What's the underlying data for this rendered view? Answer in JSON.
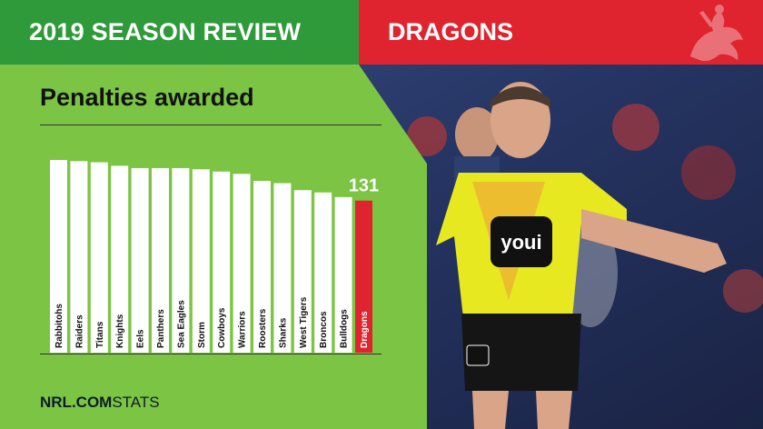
{
  "header": {
    "left_title": "2019 SEASON REVIEW",
    "right_title": "DRAGONS"
  },
  "footer": {
    "brand": "NRL.COM",
    "suffix": "STATS"
  },
  "icons": {
    "header_logo": "dragon-emblem-icon",
    "photo": "referee-photo"
  },
  "colors": {
    "header_green": "#2e9a3a",
    "panel_green": "#7cc443",
    "accent_red": "#e0242f",
    "bar_white": "#ffffff"
  },
  "chart_data": {
    "type": "bar",
    "title": "Penalties awarded",
    "categories": [
      "Rabbitohs",
      "Raiders",
      "Titans",
      "Knights",
      "Eels",
      "Panthers",
      "Sea Eagles",
      "Storm",
      "Cowboys",
      "Warriors",
      "Roosters",
      "Sharks",
      "West Tigers",
      "Broncos",
      "Bulldogs",
      "Dragons"
    ],
    "values": [
      166,
      165,
      164,
      161,
      159,
      159,
      159,
      158,
      156,
      154,
      148,
      146,
      140,
      138,
      134,
      131
    ],
    "highlight": "Dragons",
    "highlight_label": "131",
    "ylim": [
      0,
      180
    ]
  }
}
